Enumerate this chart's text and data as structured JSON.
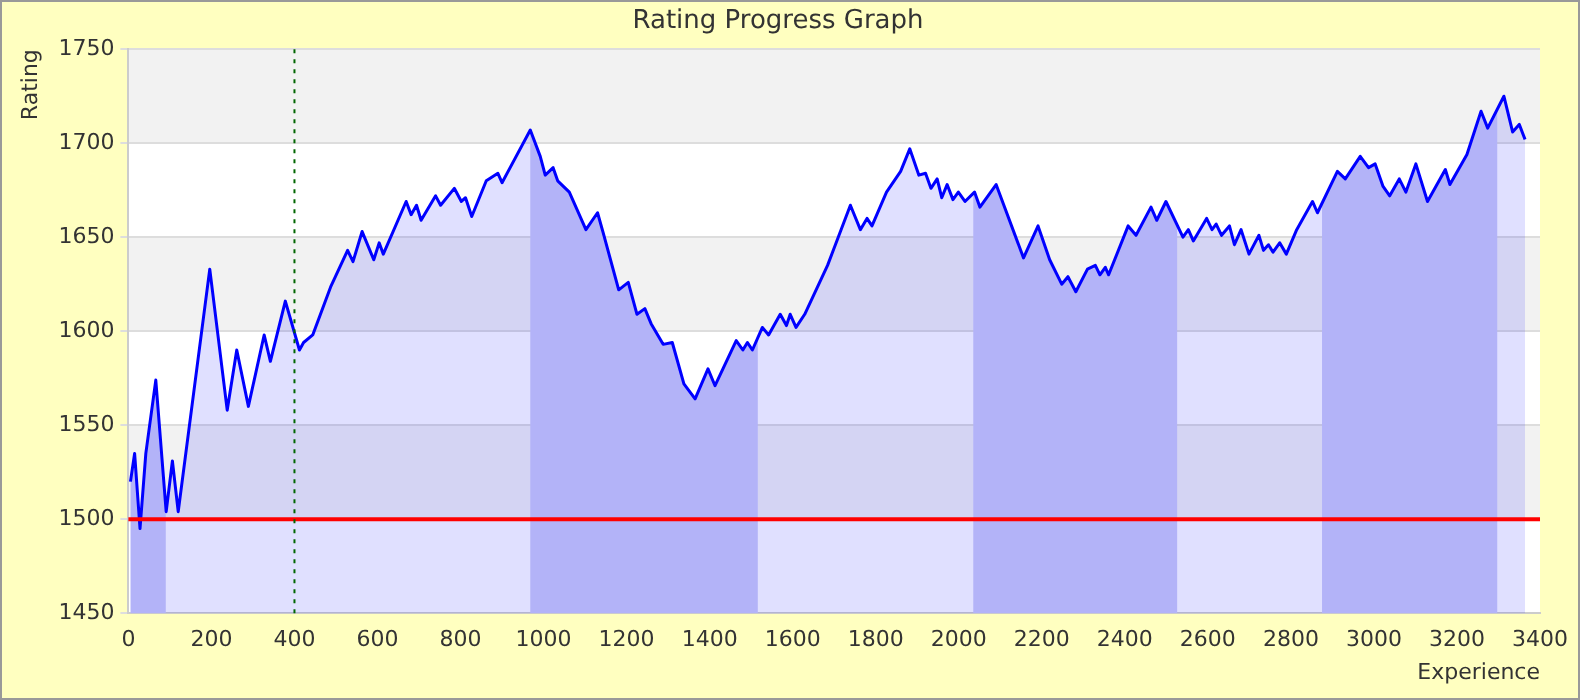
{
  "chart_data": {
    "type": "area",
    "title": "Rating Progress Graph",
    "xlabel": "Experience",
    "ylabel": "Rating",
    "xlim": [
      0,
      3400
    ],
    "xticks": [
      0,
      200,
      400,
      600,
      800,
      1000,
      1200,
      1400,
      1600,
      1800,
      2000,
      2200,
      2400,
      2600,
      2800,
      3000,
      3200,
      3400
    ],
    "ylim": [
      1450,
      1750
    ],
    "yticks": [
      1450,
      1500,
      1550,
      1600,
      1650,
      1700,
      1750
    ],
    "grid": "y",
    "legend": false,
    "marker": "none",
    "line_style": "solid",
    "ref_lines": [
      {
        "axis": "y",
        "value": 1500,
        "color": "#ff0000",
        "line_style": "solid"
      },
      {
        "axis": "x",
        "value": 400,
        "color": "#006600",
        "line_style": "dotted"
      }
    ],
    "bands": [
      {
        "axis": "x",
        "from": 0,
        "to": 90,
        "color": "#ccccf8"
      },
      {
        "axis": "x",
        "from": 968,
        "to": 1516,
        "color": "#ccccf8"
      },
      {
        "axis": "x",
        "from": 2035,
        "to": 2526,
        "color": "#ccccf8"
      },
      {
        "axis": "x",
        "from": 2875,
        "to": 3297,
        "color": "#ccccf8"
      }
    ],
    "series": [
      {
        "color": "#0000ff",
        "x": [
          5,
          15,
          28,
          42,
          66,
          91,
          106,
          120,
          196,
          238,
          261,
          289,
          327,
          342,
          378,
          412,
          422,
          444,
          488,
          528,
          541,
          563,
          591,
          604,
          614,
          669,
          681,
          694,
          705,
          740,
          752,
          785,
          802,
          812,
          827,
          862,
          890,
          900,
          968,
          992,
          1004,
          1023,
          1034,
          1062,
          1102,
          1130,
          1144,
          1181,
          1204,
          1225,
          1244,
          1259,
          1288,
          1310,
          1338,
          1365,
          1396,
          1413,
          1464,
          1480,
          1491,
          1503,
          1527,
          1542,
          1570,
          1585,
          1594,
          1608,
          1629,
          1684,
          1739,
          1763,
          1779,
          1791,
          1826,
          1860,
          1882,
          1904,
          1920,
          1933,
          1948,
          1959,
          1972,
          1986,
          1999,
          2015,
          2038,
          2051,
          2090,
          2156,
          2191,
          2219,
          2248,
          2263,
          2282,
          2310,
          2329,
          2340,
          2353,
          2361,
          2408,
          2427,
          2463,
          2477,
          2499,
          2540,
          2553,
          2565,
          2597,
          2610,
          2620,
          2633,
          2652,
          2664,
          2680,
          2699,
          2723,
          2734,
          2746,
          2757,
          2773,
          2789,
          2814,
          2852,
          2864,
          2912,
          2931,
          2967,
          2987,
          3003,
          3022,
          3038,
          3061,
          3077,
          3101,
          3129,
          3172,
          3183,
          3224,
          3258,
          3274,
          3313,
          3334,
          3350,
          3364
        ],
        "values": [
          1520,
          1535,
          1495,
          1535,
          1574,
          1504,
          1531,
          1504,
          1633,
          1558,
          1590,
          1560,
          1598,
          1584,
          1616,
          1590,
          1594,
          1598,
          1624,
          1643,
          1637,
          1653,
          1638,
          1647,
          1641,
          1669,
          1662,
          1667,
          1659,
          1672,
          1667,
          1676,
          1669,
          1671,
          1661,
          1680,
          1684,
          1679,
          1707,
          1693,
          1683,
          1687,
          1680,
          1674,
          1654,
          1663,
          1652,
          1622,
          1626,
          1609,
          1612,
          1604,
          1593,
          1594,
          1572,
          1564,
          1580,
          1571,
          1595,
          1590,
          1594,
          1590,
          1602,
          1598,
          1609,
          1603,
          1609,
          1602,
          1609,
          1635,
          1667,
          1654,
          1660,
          1656,
          1674,
          1685,
          1697,
          1683,
          1684,
          1676,
          1681,
          1671,
          1678,
          1670,
          1674,
          1669,
          1674,
          1666,
          1678,
          1639,
          1656,
          1638,
          1625,
          1629,
          1621,
          1633,
          1635,
          1630,
          1634,
          1630,
          1656,
          1651,
          1666,
          1659,
          1669,
          1650,
          1654,
          1648,
          1660,
          1654,
          1657,
          1651,
          1656,
          1646,
          1654,
          1641,
          1651,
          1643,
          1646,
          1642,
          1647,
          1641,
          1654,
          1669,
          1663,
          1685,
          1681,
          1693,
          1687,
          1689,
          1677,
          1672,
          1681,
          1674,
          1689,
          1669,
          1686,
          1678,
          1694,
          1717,
          1708,
          1725,
          1706,
          1710,
          1702
        ]
      }
    ]
  }
}
